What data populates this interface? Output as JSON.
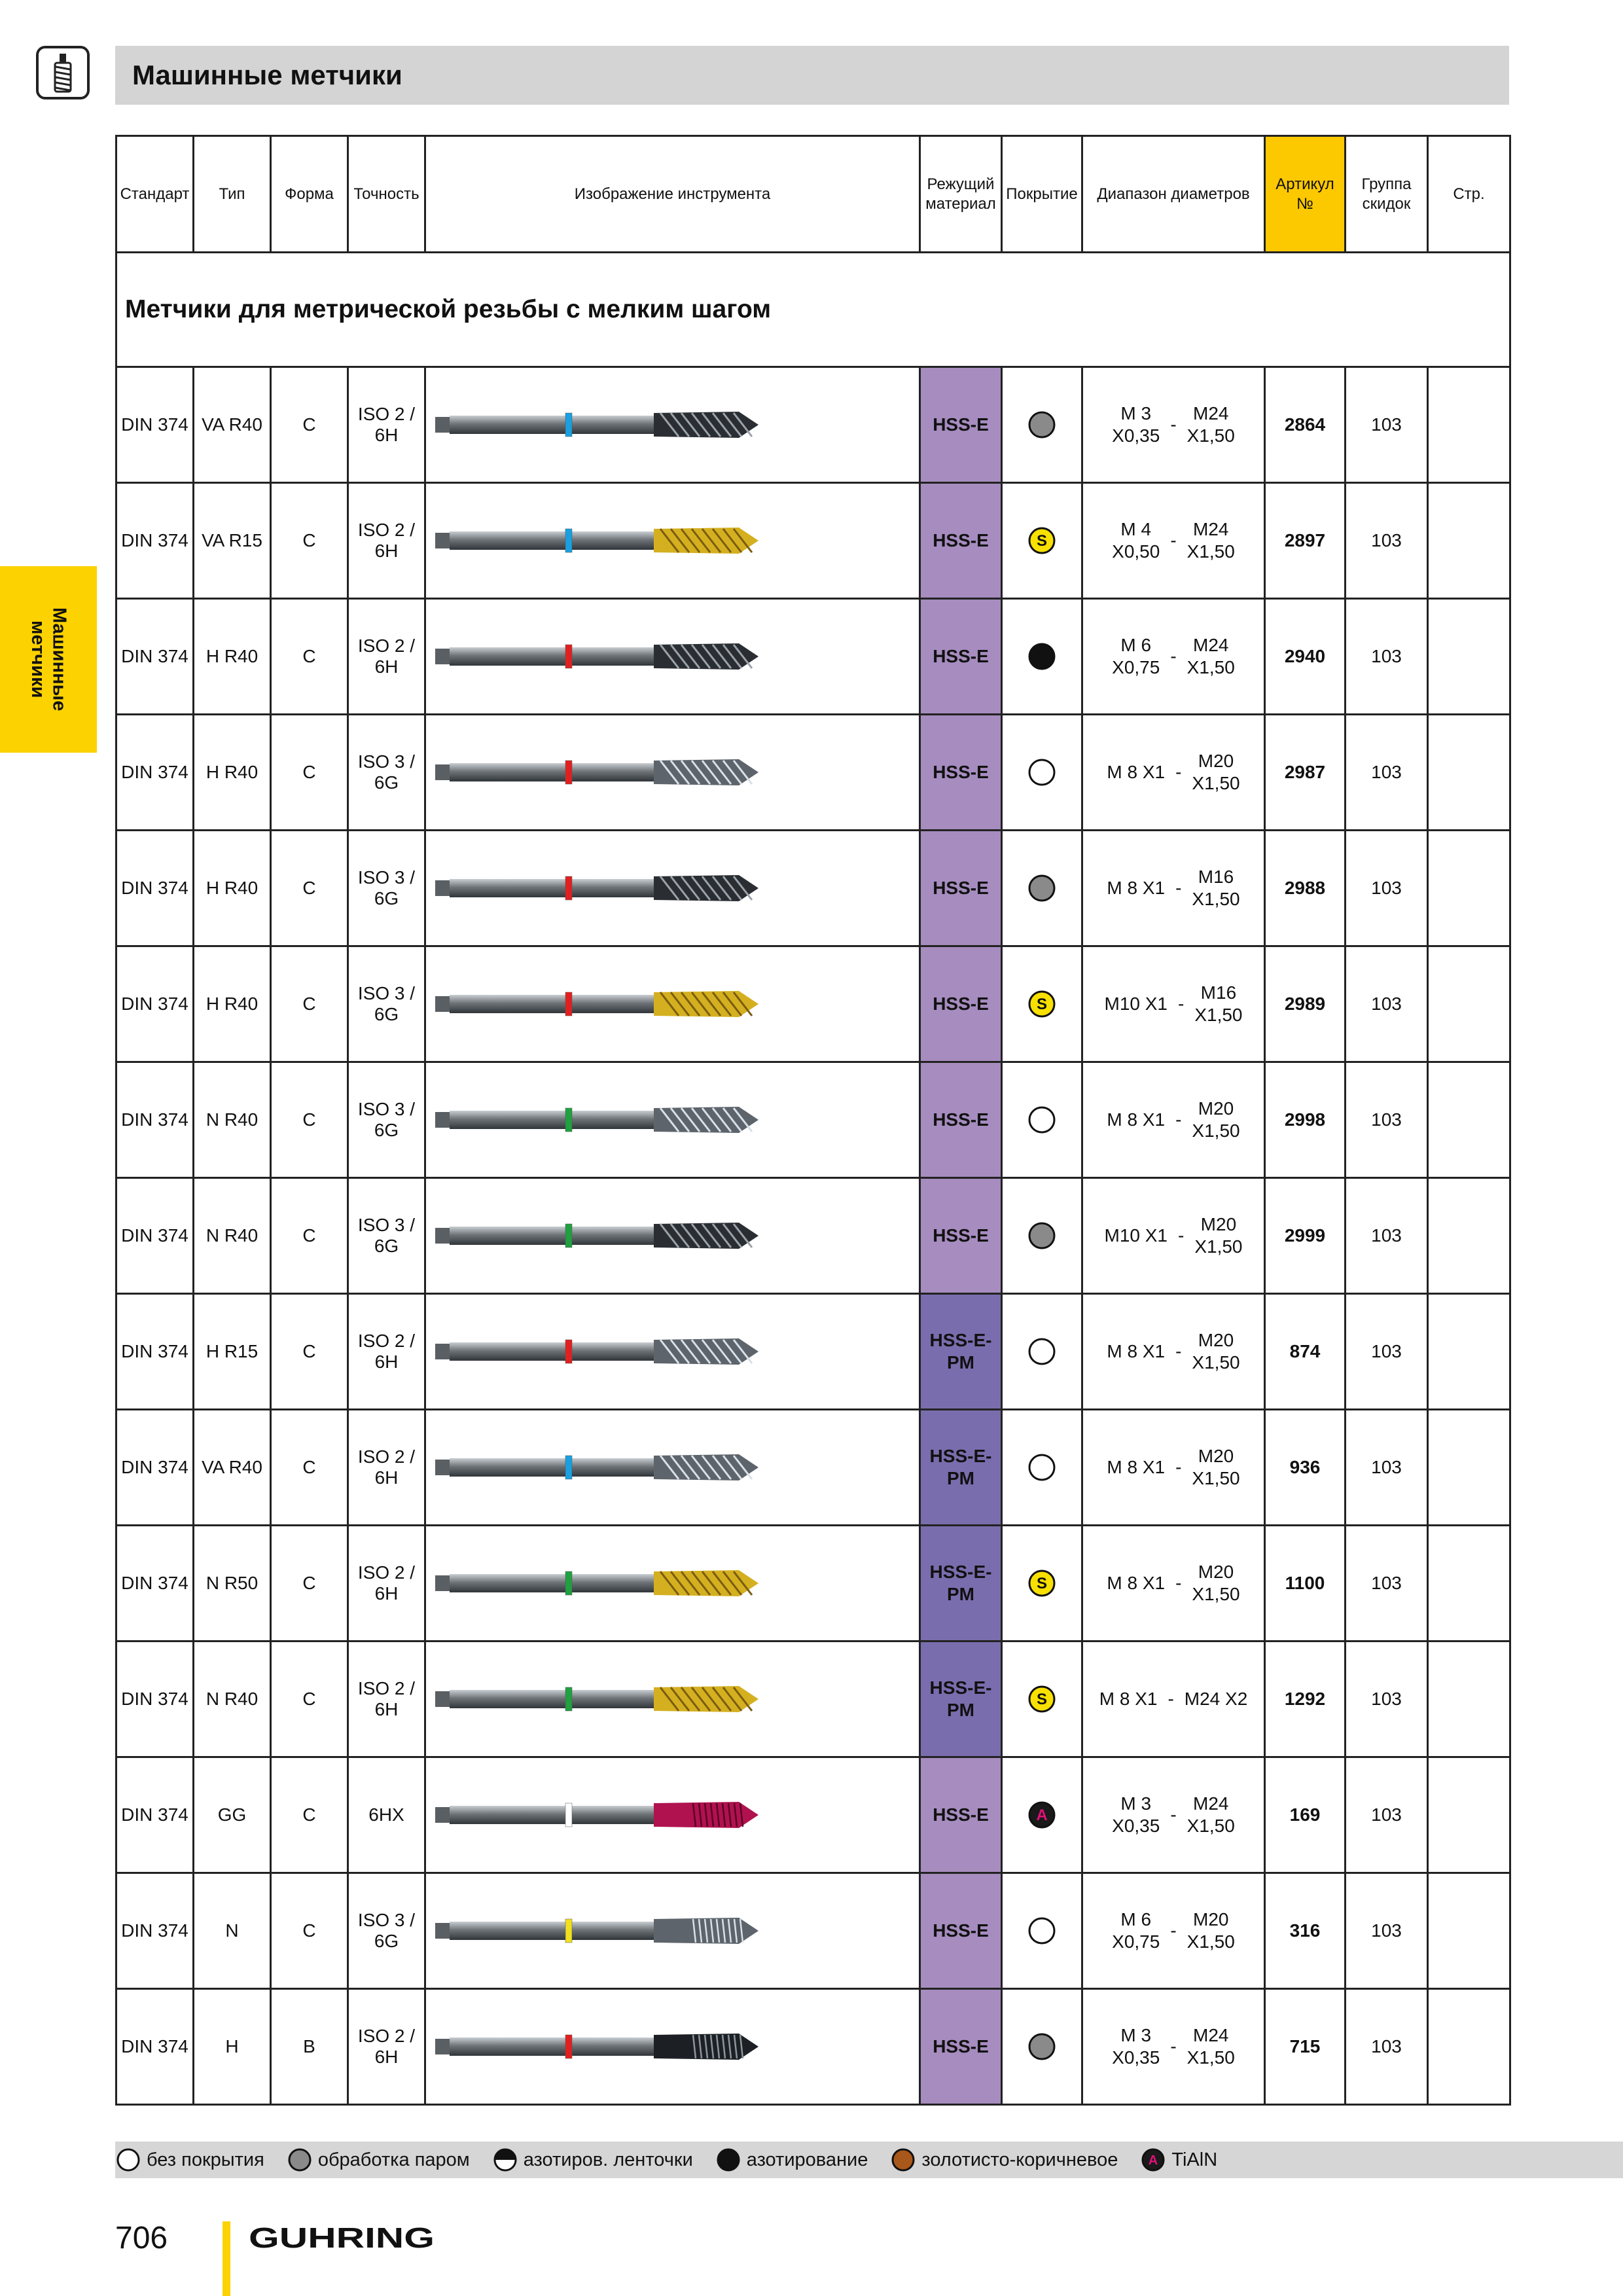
{
  "header": {
    "title": "Машинные метчики"
  },
  "side_tab": {
    "label": "Машинные метчики"
  },
  "table": {
    "headers": [
      "Стандарт",
      "Тип",
      "Форма",
      "Точность",
      "Изображение инструмента",
      "Режущий материал",
      "Покрытие",
      "Диапазон диаметров",
      "Артикул №",
      "Группа скидок",
      "Стр."
    ],
    "section_title": "Метчики для метрической резьбы с мелким шагом",
    "rows": [
      {
        "standard": "DIN 374",
        "type": "VA R40",
        "form": "C",
        "precision": "ISO 2 / 6H",
        "material": "HSS-E",
        "coating": "steam",
        "range_from": "M 3 X0,35",
        "range_to": "M24 X1,50",
        "article": "2864",
        "group": "103",
        "page": "",
        "ring_color": "#1aa0e0",
        "tool": "dark-spiral"
      },
      {
        "standard": "DIN 374",
        "type": "VA R15",
        "form": "C",
        "precision": "ISO 2 / 6H",
        "material": "HSS-E",
        "coating": "S",
        "range_from": "M 4 X0,50",
        "range_to": "M24 X1,50",
        "article": "2897",
        "group": "103",
        "page": "",
        "ring_color": "#1aa0e0",
        "tool": "gold-spiral"
      },
      {
        "standard": "DIN 374",
        "type": "H R40",
        "form": "C",
        "precision": "ISO 2 / 6H",
        "material": "HSS-E",
        "coating": "nitrided",
        "range_from": "M 6 X0,75",
        "range_to": "M24 X1,50",
        "article": "2940",
        "group": "103",
        "page": "",
        "ring_color": "#e02020",
        "tool": "dark-spiral"
      },
      {
        "standard": "DIN 374",
        "type": "H R40",
        "form": "C",
        "precision": "ISO 3 / 6G",
        "material": "HSS-E",
        "coating": "none",
        "range_from": "M 8 X1",
        "range_to": "M20 X1,50",
        "article": "2987",
        "group": "103",
        "page": "",
        "ring_color": "#e02020",
        "tool": "bright-spiral"
      },
      {
        "standard": "DIN 374",
        "type": "H R40",
        "form": "C",
        "precision": "ISO 3 / 6G",
        "material": "HSS-E",
        "coating": "steam",
        "range_from": "M 8 X1",
        "range_to": "M16 X1,50",
        "article": "2988",
        "group": "103",
        "page": "",
        "ring_color": "#e02020",
        "tool": "dark-spiral"
      },
      {
        "standard": "DIN 374",
        "type": "H R40",
        "form": "C",
        "precision": "ISO 3 / 6G",
        "material": "HSS-E",
        "coating": "S",
        "range_from": "M10 X1",
        "range_to": "M16 X1,50",
        "article": "2989",
        "group": "103",
        "page": "",
        "ring_color": "#e02020",
        "tool": "gold-spiral"
      },
      {
        "standard": "DIN 374",
        "type": "N R40",
        "form": "C",
        "precision": "ISO 3 / 6G",
        "material": "HSS-E",
        "coating": "none",
        "range_from": "M 8 X1",
        "range_to": "M20 X1,50",
        "article": "2998",
        "group": "103",
        "page": "",
        "ring_color": "#20a040",
        "tool": "bright-spiral"
      },
      {
        "standard": "DIN 374",
        "type": "N R40",
        "form": "C",
        "precision": "ISO 3 / 6G",
        "material": "HSS-E",
        "coating": "steam",
        "range_from": "M10 X1",
        "range_to": "M20 X1,50",
        "article": "2999",
        "group": "103",
        "page": "",
        "ring_color": "#20a040",
        "tool": "dark-spiral"
      },
      {
        "standard": "DIN 374",
        "type": "H R15",
        "form": "C",
        "precision": "ISO 2 / 6H",
        "material": "HSS-E-PM",
        "coating": "none",
        "range_from": "M 8 X1",
        "range_to": "M20 X1,50",
        "article": "874",
        "group": "103",
        "page": "",
        "ring_color": "#e02020",
        "tool": "bright-spiral"
      },
      {
        "standard": "DIN 374",
        "type": "VA R40",
        "form": "C",
        "precision": "ISO 2 / 6H",
        "material": "HSS-E-PM",
        "coating": "none",
        "range_from": "M 8 X1",
        "range_to": "M20 X1,50",
        "article": "936",
        "group": "103",
        "page": "",
        "ring_color": "#1aa0e0",
        "tool": "bright-spiral"
      },
      {
        "standard": "DIN 374",
        "type": "N R50",
        "form": "C",
        "precision": "ISO 2 / 6H",
        "material": "HSS-E-PM",
        "coating": "S",
        "range_from": "M 8 X1",
        "range_to": "M20 X1,50",
        "article": "1100",
        "group": "103",
        "page": "",
        "ring_color": "#20a040",
        "tool": "gold-spiral"
      },
      {
        "standard": "DIN 374",
        "type": "N R40",
        "form": "C",
        "precision": "ISO 2 / 6H",
        "material": "HSS-E-PM",
        "coating": "S",
        "range_from": "M 8 X1",
        "range_to": "M24 X2",
        "article": "1292",
        "group": "103",
        "page": "",
        "ring_color": "#20a040",
        "tool": "gold-spiral"
      },
      {
        "standard": "DIN 374",
        "type": "GG",
        "form": "C",
        "precision": "6HX",
        "material": "HSS-E",
        "coating": "A",
        "range_from": "M 3 X0,35",
        "range_to": "M24 X1,50",
        "article": "169",
        "group": "103",
        "page": "",
        "ring_color": "#ffffff",
        "tool": "red-straight"
      },
      {
        "standard": "DIN 374",
        "type": "N",
        "form": "C",
        "precision": "ISO 3 / 6G",
        "material": "HSS-E",
        "coating": "none",
        "range_from": "M 6 X0,75",
        "range_to": "M20 X1,50",
        "article": "316",
        "group": "103",
        "page": "",
        "ring_color": "#f0e020",
        "tool": "bright-straight"
      },
      {
        "standard": "DIN 374",
        "type": "H",
        "form": "B",
        "precision": "ISO 2 / 6H",
        "material": "HSS-E",
        "coating": "steam",
        "range_from": "M 3 X0,35",
        "range_to": "M24 X1,50",
        "article": "715",
        "group": "103",
        "page": "",
        "ring_color": "#e02020",
        "tool": "dark-straight"
      }
    ]
  },
  "legend": [
    {
      "icon": "uncoated-icon",
      "label": "без покрытия"
    },
    {
      "icon": "steam-treated-icon",
      "label": "обработка паром"
    },
    {
      "icon": "nitrided-lands-icon",
      "label": "азотиров. ленточки"
    },
    {
      "icon": "nitrided-icon",
      "label": "азотирование"
    },
    {
      "icon": "gold-brown-icon",
      "label": "золотисто-коричневое"
    },
    {
      "icon": "tialn-icon",
      "label": "TiAlN"
    }
  ],
  "footer": {
    "page_number": "706",
    "brand": "GUHRING"
  },
  "colors": {
    "accent_yellow": "#fcd200",
    "material_a": "#a68cbf",
    "material_b": "#7a6dae",
    "steam_grey": "#8a8a8a",
    "tialn_magenta": "#d0105a"
  }
}
